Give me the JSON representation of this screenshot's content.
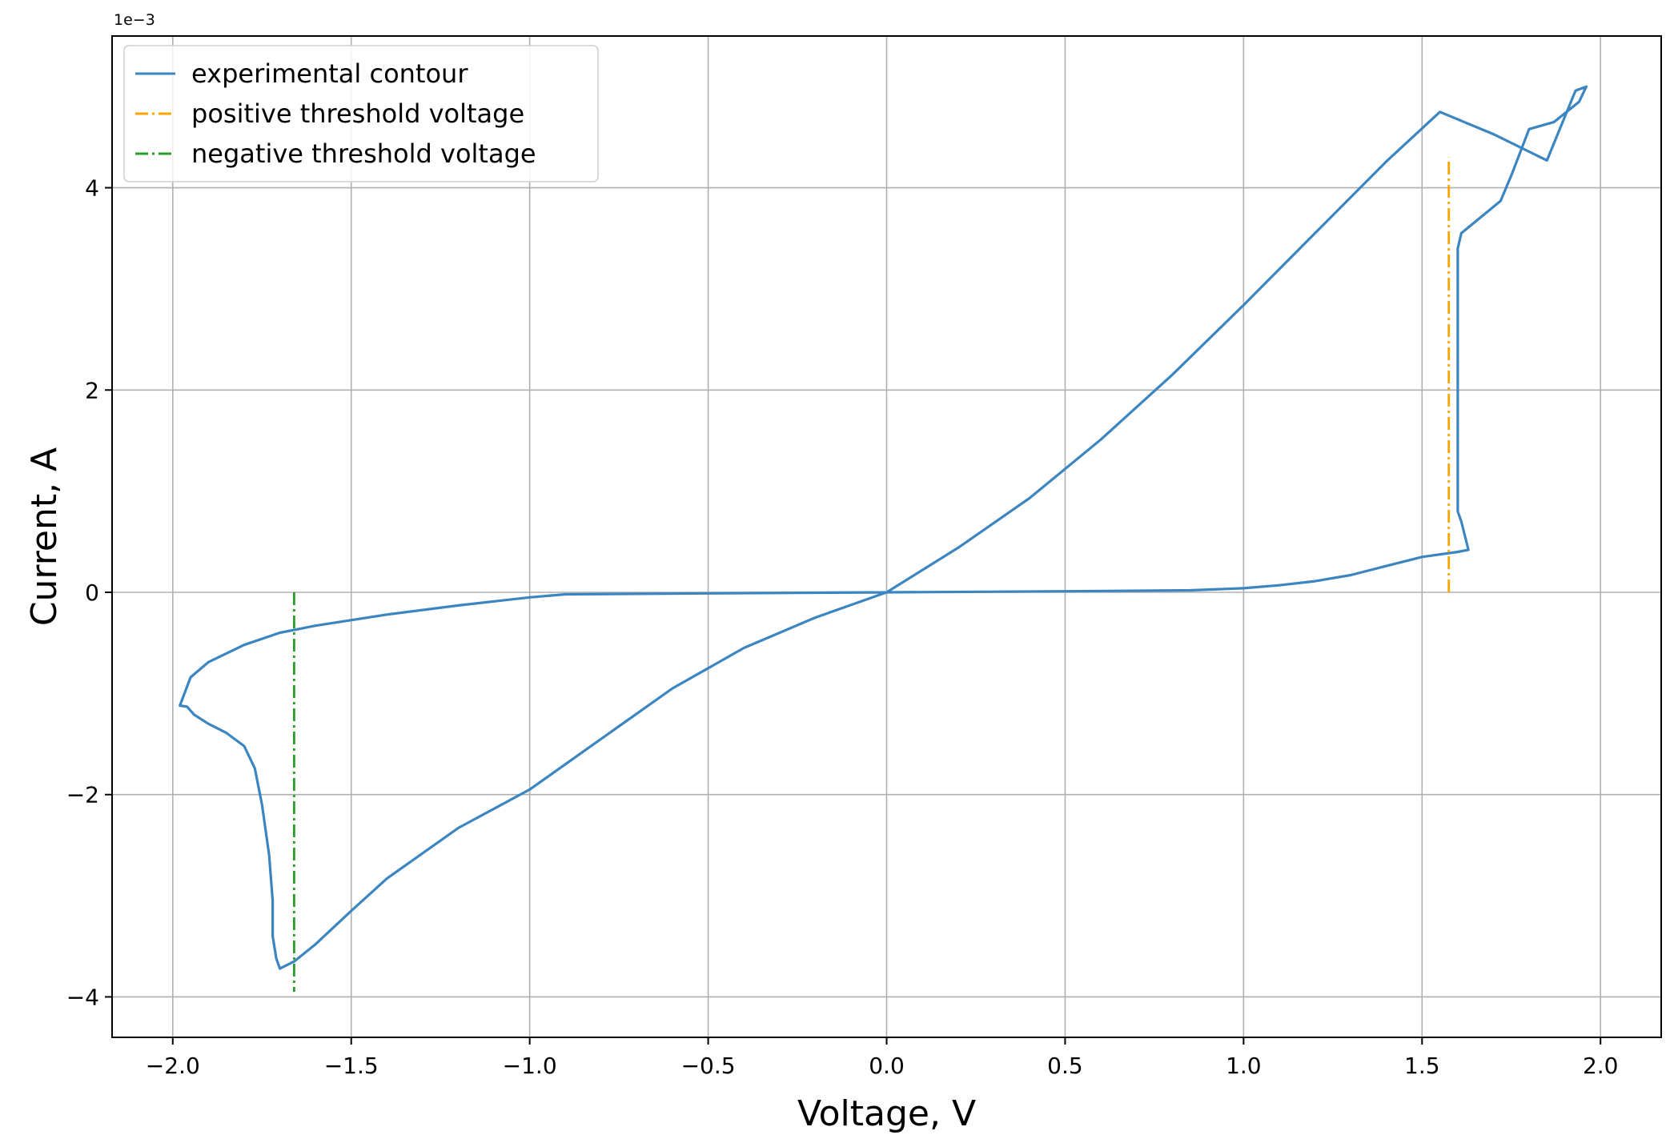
{
  "chart_data": {
    "type": "line",
    "xlabel": "Voltage, V",
    "ylabel": "Current, A",
    "y_offset_label": "1e−3",
    "xlim": [
      -2.17,
      2.17
    ],
    "ylim": [
      -4.4,
      5.5
    ],
    "grid": true,
    "legend_position": "top-left",
    "x_ticks": [
      -2.0,
      -1.5,
      -1.0,
      -0.5,
      0.0,
      0.5,
      1.0,
      1.5,
      2.0
    ],
    "x_tick_labels": [
      "−2.0",
      "−1.5",
      "−1.0",
      "−0.5",
      "0.0",
      "0.5",
      "1.0",
      "1.5",
      "2.0"
    ],
    "y_ticks": [
      -4,
      -2,
      0,
      2,
      4
    ],
    "y_tick_labels": [
      "−4",
      "−2",
      "0",
      "2",
      "4"
    ],
    "series": [
      {
        "name": "experimental contour",
        "color": "#3b85c1",
        "style": "solid",
        "x": [
          0.0,
          0.2,
          0.4,
          0.6,
          0.8,
          1.0,
          1.2,
          1.4,
          1.55,
          1.7,
          1.85,
          1.93,
          1.96,
          1.94,
          1.87,
          1.8,
          1.75,
          1.72,
          1.61,
          1.6,
          1.6,
          1.6,
          1.6,
          1.61,
          1.63,
          1.6,
          1.5,
          1.4,
          1.3,
          1.2,
          1.1,
          1.0,
          0.85,
          0.5,
          0.0,
          -0.5,
          -0.9,
          -1.0,
          -1.2,
          -1.4,
          -1.6,
          -1.7,
          -1.8,
          -1.9,
          -1.95,
          -1.98,
          -1.96,
          -1.94,
          -1.9,
          -1.85,
          -1.8,
          -1.77,
          -1.75,
          -1.73,
          -1.72,
          -1.72,
          -1.71,
          -1.7,
          -1.66,
          -1.6,
          -1.5,
          -1.4,
          -1.2,
          -1.0,
          -0.8,
          -0.6,
          -0.5,
          -0.4,
          -0.2,
          0.0
        ],
        "y": [
          0.0,
          0.44,
          0.93,
          1.51,
          2.15,
          2.84,
          3.55,
          4.26,
          4.75,
          4.53,
          4.27,
          4.96,
          5.0,
          4.85,
          4.65,
          4.58,
          4.12,
          3.87,
          3.55,
          3.4,
          2.5,
          1.5,
          0.8,
          0.7,
          0.42,
          0.4,
          0.35,
          0.26,
          0.17,
          0.11,
          0.07,
          0.04,
          0.02,
          0.01,
          0.0,
          -0.01,
          -0.02,
          -0.05,
          -0.13,
          -0.22,
          -0.33,
          -0.4,
          -0.52,
          -0.69,
          -0.84,
          -1.12,
          -1.13,
          -1.21,
          -1.3,
          -1.39,
          -1.52,
          -1.74,
          -2.1,
          -2.6,
          -3.05,
          -3.4,
          -3.62,
          -3.72,
          -3.65,
          -3.48,
          -3.15,
          -2.83,
          -2.33,
          -1.95,
          -1.45,
          -0.95,
          -0.75,
          -0.55,
          -0.25,
          0.0
        ]
      },
      {
        "name": "positive threshold voltage",
        "color": "#ffa500",
        "style": "dashdot",
        "x": [
          1.575,
          1.575
        ],
        "y": [
          -0.0,
          4.3
        ]
      },
      {
        "name": "negative threshold voltage",
        "color": "#2a9d2a",
        "style": "dashdot",
        "x": [
          -1.66,
          -1.66
        ],
        "y": [
          0.0,
          -3.95
        ]
      }
    ]
  }
}
